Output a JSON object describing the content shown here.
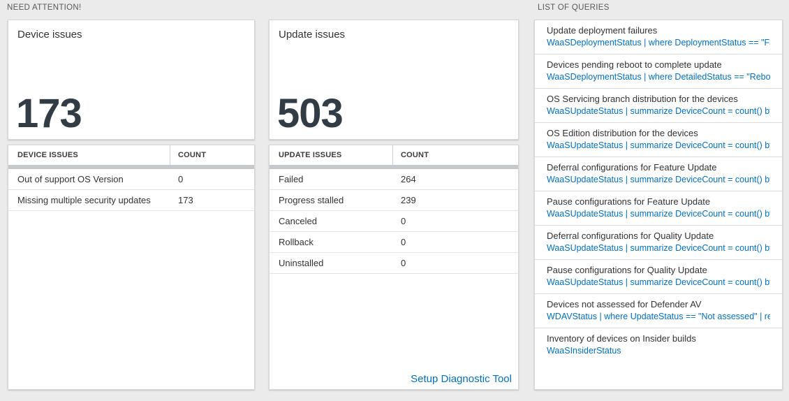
{
  "colors": {
    "accent_blue": "#0072c6",
    "big_number": "#333b45",
    "scrollbar_gray": "#c6c9cc",
    "page_background": "#ebebeb"
  },
  "sections": {
    "need_attention": "NEED ATTENTION!",
    "list_of_queries": "LIST OF QUERIES"
  },
  "device_card": {
    "title": "Device issues",
    "count": "173"
  },
  "device_table": {
    "headers": [
      "DEVICE ISSUES",
      "COUNT"
    ],
    "rows": [
      {
        "label": "Out of support OS Version",
        "count": "0"
      },
      {
        "label": "Missing multiple security updates",
        "count": "173"
      }
    ]
  },
  "update_card": {
    "title": "Update issues",
    "count": "503"
  },
  "update_table": {
    "headers": [
      "UPDATE ISSUES",
      "COUNT"
    ],
    "rows": [
      {
        "label": "Failed",
        "count": "264"
      },
      {
        "label": "Progress stalled",
        "count": "239"
      },
      {
        "label": "Canceled",
        "count": "0"
      },
      {
        "label": "Rollback",
        "count": "0"
      },
      {
        "label": "Uninstalled",
        "count": "0"
      }
    ]
  },
  "diagnostic_link": "Setup Diagnostic Tool",
  "queries": [
    {
      "title": "Update deployment failures",
      "query": "WaaSDeploymentStatus | where DeploymentStatus == \"Failed\" |..."
    },
    {
      "title": "Devices pending reboot to complete update",
      "query": "WaaSDeploymentStatus | where DetailedStatus == \"Reboot pend..."
    },
    {
      "title": "OS Servicing branch distribution for the devices",
      "query": "WaaSUpdateStatus | summarize DeviceCount = count() by OSSer..."
    },
    {
      "title": "OS Edition distribution for the devices",
      "query": "WaaSUpdateStatus | summarize DeviceCount = count() by OSEdit..."
    },
    {
      "title": "Deferral configurations for Feature Update",
      "query": "WaaSUpdateStatus | summarize DeviceCount = count() by Featur..."
    },
    {
      "title": "Pause configurations for Feature Update",
      "query": "WaaSUpdateStatus | summarize DeviceCount = count() by Featur..."
    },
    {
      "title": "Deferral configurations for Quality Update",
      "query": "WaaSUpdateStatus | summarize DeviceCount = count() by Qualit..."
    },
    {
      "title": "Pause configurations for Quality Update",
      "query": "WaaSUpdateStatus | summarize DeviceCount = count() by Qualit..."
    },
    {
      "title": "Devices not assessed for Defender AV",
      "query": "WDAVStatus | where UpdateStatus == \"Not assessed\" | render ta..."
    },
    {
      "title": "Inventory of devices on Insider builds",
      "query": "WaaSInsiderStatus"
    }
  ]
}
